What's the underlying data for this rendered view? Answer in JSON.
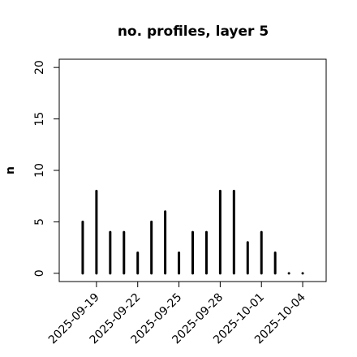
{
  "chart_data": {
    "type": "bar",
    "bar_style": "h",
    "title": "no. profiles, layer 5",
    "ylabel": "n",
    "x": [
      "2025-09-18",
      "2025-09-19",
      "2025-09-20",
      "2025-09-21",
      "2025-09-22",
      "2025-09-23",
      "2025-09-24",
      "2025-09-25",
      "2025-09-26",
      "2025-09-27",
      "2025-09-28",
      "2025-09-29",
      "2025-09-30",
      "2025-10-01",
      "2025-10-02",
      "2025-10-03",
      "2025-10-04"
    ],
    "values": [
      5,
      8,
      4,
      4,
      2,
      5,
      6,
      2,
      4,
      4,
      8,
      8,
      3,
      4,
      2,
      0,
      0
    ],
    "color": "#000000",
    "xlim": [
      "2025-09-16T07:00Z",
      "2025-10-05T17:00Z"
    ],
    "xticks": [
      "2025-09-19",
      "2025-09-22",
      "2025-09-25",
      "2025-09-28",
      "2025-10-01",
      "2025-10-04"
    ],
    "xtick_colors": [
      "#000000",
      "#000000",
      "#228b22",
      "#000000",
      "#000000",
      "#000000"
    ],
    "ylim": [
      -0.8,
      20.8
    ],
    "yticks": [
      0,
      5,
      10,
      15,
      20
    ]
  }
}
